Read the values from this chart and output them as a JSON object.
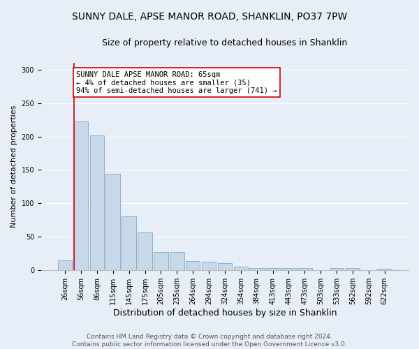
{
  "title1": "SUNNY DALE, APSE MANOR ROAD, SHANKLIN, PO37 7PW",
  "title2": "Size of property relative to detached houses in Shanklin",
  "xlabel": "Distribution of detached houses by size in Shanklin",
  "ylabel": "Number of detached properties",
  "footer1": "Contains HM Land Registry data © Crown copyright and database right 2024.",
  "footer2": "Contains public sector information licensed under the Open Government Licence v3.0.",
  "bin_labels": [
    "26sqm",
    "56sqm",
    "86sqm",
    "115sqm",
    "145sqm",
    "175sqm",
    "205sqm",
    "235sqm",
    "264sqm",
    "294sqm",
    "324sqm",
    "354sqm",
    "384sqm",
    "413sqm",
    "443sqm",
    "473sqm",
    "503sqm",
    "533sqm",
    "562sqm",
    "592sqm",
    "622sqm"
  ],
  "bar_heights": [
    15,
    222,
    202,
    144,
    81,
    57,
    27,
    27,
    14,
    13,
    11,
    6,
    3,
    3,
    4,
    3,
    0,
    4,
    4,
    0,
    2
  ],
  "bar_color": "#c8d8e8",
  "bar_edge_color": "#7aaacb",
  "vline_x_index": 1,
  "vline_color": "#cc0000",
  "annotation_text": "SUNNY DALE APSE MANOR ROAD: 65sqm\n← 4% of detached houses are smaller (35)\n94% of semi-detached houses are larger (741) →",
  "annotation_box_color": "#ffffff",
  "annotation_box_edge": "#cc0000",
  "ylim": [
    0,
    310
  ],
  "background_color": "#e8eef8",
  "fig_background_color": "#e8eef8",
  "grid_color": "#ffffff",
  "title1_fontsize": 10,
  "title2_fontsize": 9,
  "xlabel_fontsize": 9,
  "ylabel_fontsize": 8,
  "tick_fontsize": 7,
  "annotation_fontsize": 7.5,
  "footer_fontsize": 6.5
}
